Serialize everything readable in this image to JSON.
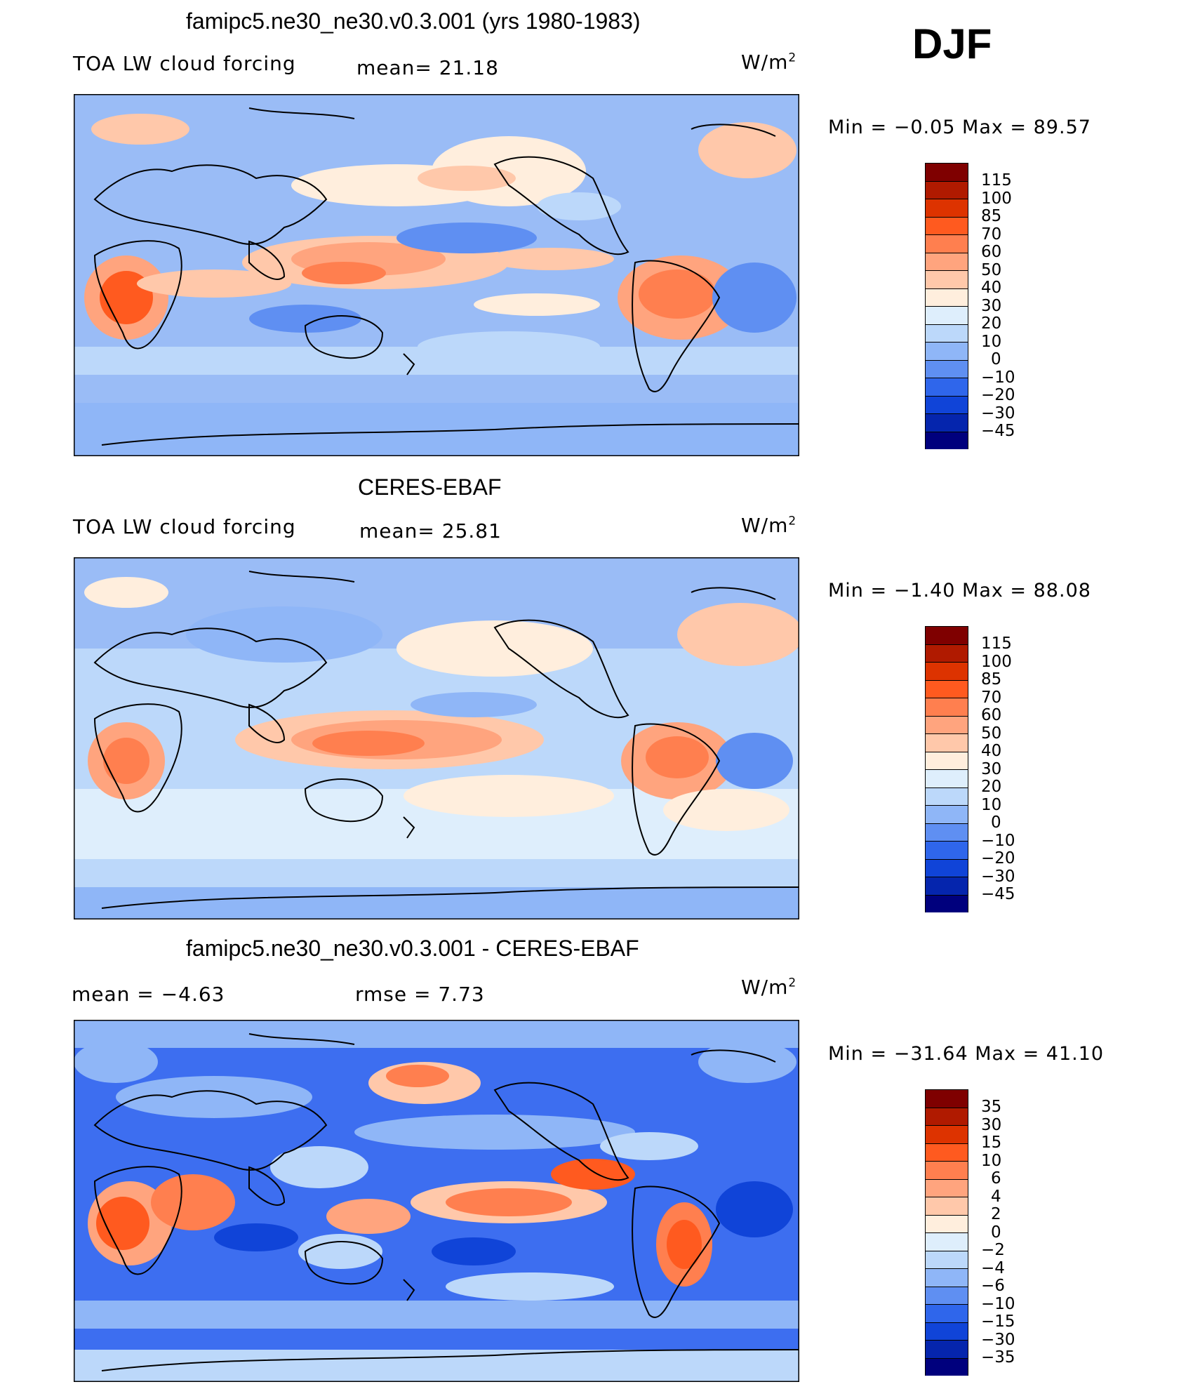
{
  "season": "DJF",
  "panels": [
    {
      "title": "famipc5.ne30_ne30.v0.3.001 (yrs 1980-1983)",
      "left_label": "TOA LW cloud forcing",
      "mid_label": "mean=   21.18",
      "units": "W/m2",
      "minmax": "Min  =   −0.05  Max  =    89.57",
      "colorbar_labels": [
        "115",
        "100",
        "85",
        "70",
        "60",
        "50",
        "40",
        "30",
        "20",
        "10",
        "0",
        "−10",
        "−20",
        "−30",
        "−45"
      ]
    },
    {
      "title": "CERES-EBAF",
      "left_label": "TOA LW cloud forcing",
      "mid_label": "mean=   25.81",
      "units": "W/m2",
      "minmax": "Min  =   −1.40  Max  =    88.08",
      "colorbar_labels": [
        "115",
        "100",
        "85",
        "70",
        "60",
        "50",
        "40",
        "30",
        "20",
        "10",
        "0",
        "−10",
        "−20",
        "−30",
        "−45"
      ]
    },
    {
      "title": "famipc5.ne30_ne30.v0.3.001 - CERES-EBAF",
      "left_label": "mean  =    −4.63",
      "mid_label": "rmse  =     7.73",
      "units": "W/m2",
      "minmax": "Min  = −31.64  Max  =    41.10",
      "colorbar_labels": [
        "35",
        "30",
        "15",
        "10",
        "6",
        "4",
        "2",
        "0",
        "−2",
        "−4",
        "−6",
        "−10",
        "−15",
        "−30",
        "−35"
      ]
    }
  ],
  "colors": {
    "colorbar": [
      "#7f0000",
      "#b01a00",
      "#dd3300",
      "#ff5a1f",
      "#ff7f4f",
      "#ffa47e",
      "#ffc8aa",
      "#ffeedd",
      "#deeefc",
      "#bcd8fa",
      "#8fb6f7",
      "#5f8ff2",
      "#2f66eb",
      "#1044d8",
      "#0525ad",
      "#00007d"
    ],
    "base_ocean_1": "#9abcf6",
    "base_ocean_2": "#dbe9fb",
    "base_ocean_3": "#3d6ef0"
  }
}
